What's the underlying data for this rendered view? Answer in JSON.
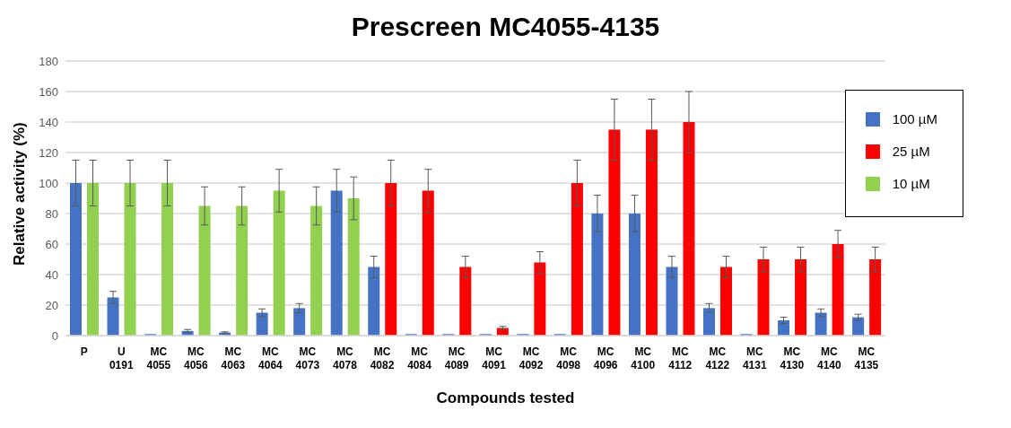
{
  "chart_data": {
    "type": "bar",
    "title": "Prescreen MC4055-4135",
    "xlabel": "Compounds tested",
    "ylabel": "Relative activity (%)",
    "categories": [
      "P",
      "U 0191",
      "MC 4055",
      "MC 4056",
      "MC 4063",
      "MC 4064",
      "MC 4073",
      "MC 4078",
      "MC 4082",
      "MC 4084",
      "MC 4089",
      "MC 4091",
      "MC 4092",
      "MC 4098",
      "MC 4096",
      "MC 4100",
      "MC 4112",
      "MC 4122",
      "MC 4131",
      "MC 4130",
      "MC 4140",
      "MC 4135"
    ],
    "series": [
      {
        "name": "100 µM",
        "color": "#4472c4",
        "values": [
          100,
          25,
          1,
          3,
          2,
          15,
          18,
          95,
          45,
          1,
          1,
          1,
          1,
          1,
          80,
          80,
          45,
          18,
          1,
          10,
          15,
          12
        ],
        "errors": [
          15,
          4,
          null,
          1,
          0.5,
          2.5,
          3,
          14,
          7,
          null,
          null,
          null,
          null,
          null,
          12,
          12,
          7,
          3,
          null,
          2,
          2.5,
          2
        ]
      },
      {
        "name": "25 µM",
        "color": "#ff0000",
        "values": [
          null,
          null,
          null,
          null,
          null,
          null,
          null,
          null,
          100,
          95,
          45,
          5,
          48,
          100,
          135,
          135,
          140,
          45,
          50,
          50,
          60,
          50
        ],
        "errors": [
          null,
          null,
          null,
          null,
          null,
          null,
          null,
          null,
          15,
          14,
          7,
          1,
          7,
          15,
          20,
          20,
          20,
          7,
          8,
          8,
          9,
          8
        ]
      },
      {
        "name": "10 µM",
        "color": "#92d050",
        "values": [
          100,
          100,
          100,
          85,
          85,
          95,
          85,
          90,
          null,
          null,
          null,
          null,
          null,
          null,
          null,
          null,
          null,
          null,
          null,
          null,
          null,
          null
        ],
        "errors": [
          15,
          15,
          15,
          12.5,
          12.5,
          14,
          12.5,
          14,
          null,
          null,
          null,
          null,
          null,
          null,
          null,
          null,
          null,
          null,
          null,
          null,
          null,
          null
        ]
      }
    ],
    "ylim": [
      0,
      180
    ],
    "yticks": [
      0,
      20,
      40,
      60,
      80,
      100,
      120,
      140,
      160,
      180
    ],
    "grid": "y",
    "legend": "top right"
  }
}
